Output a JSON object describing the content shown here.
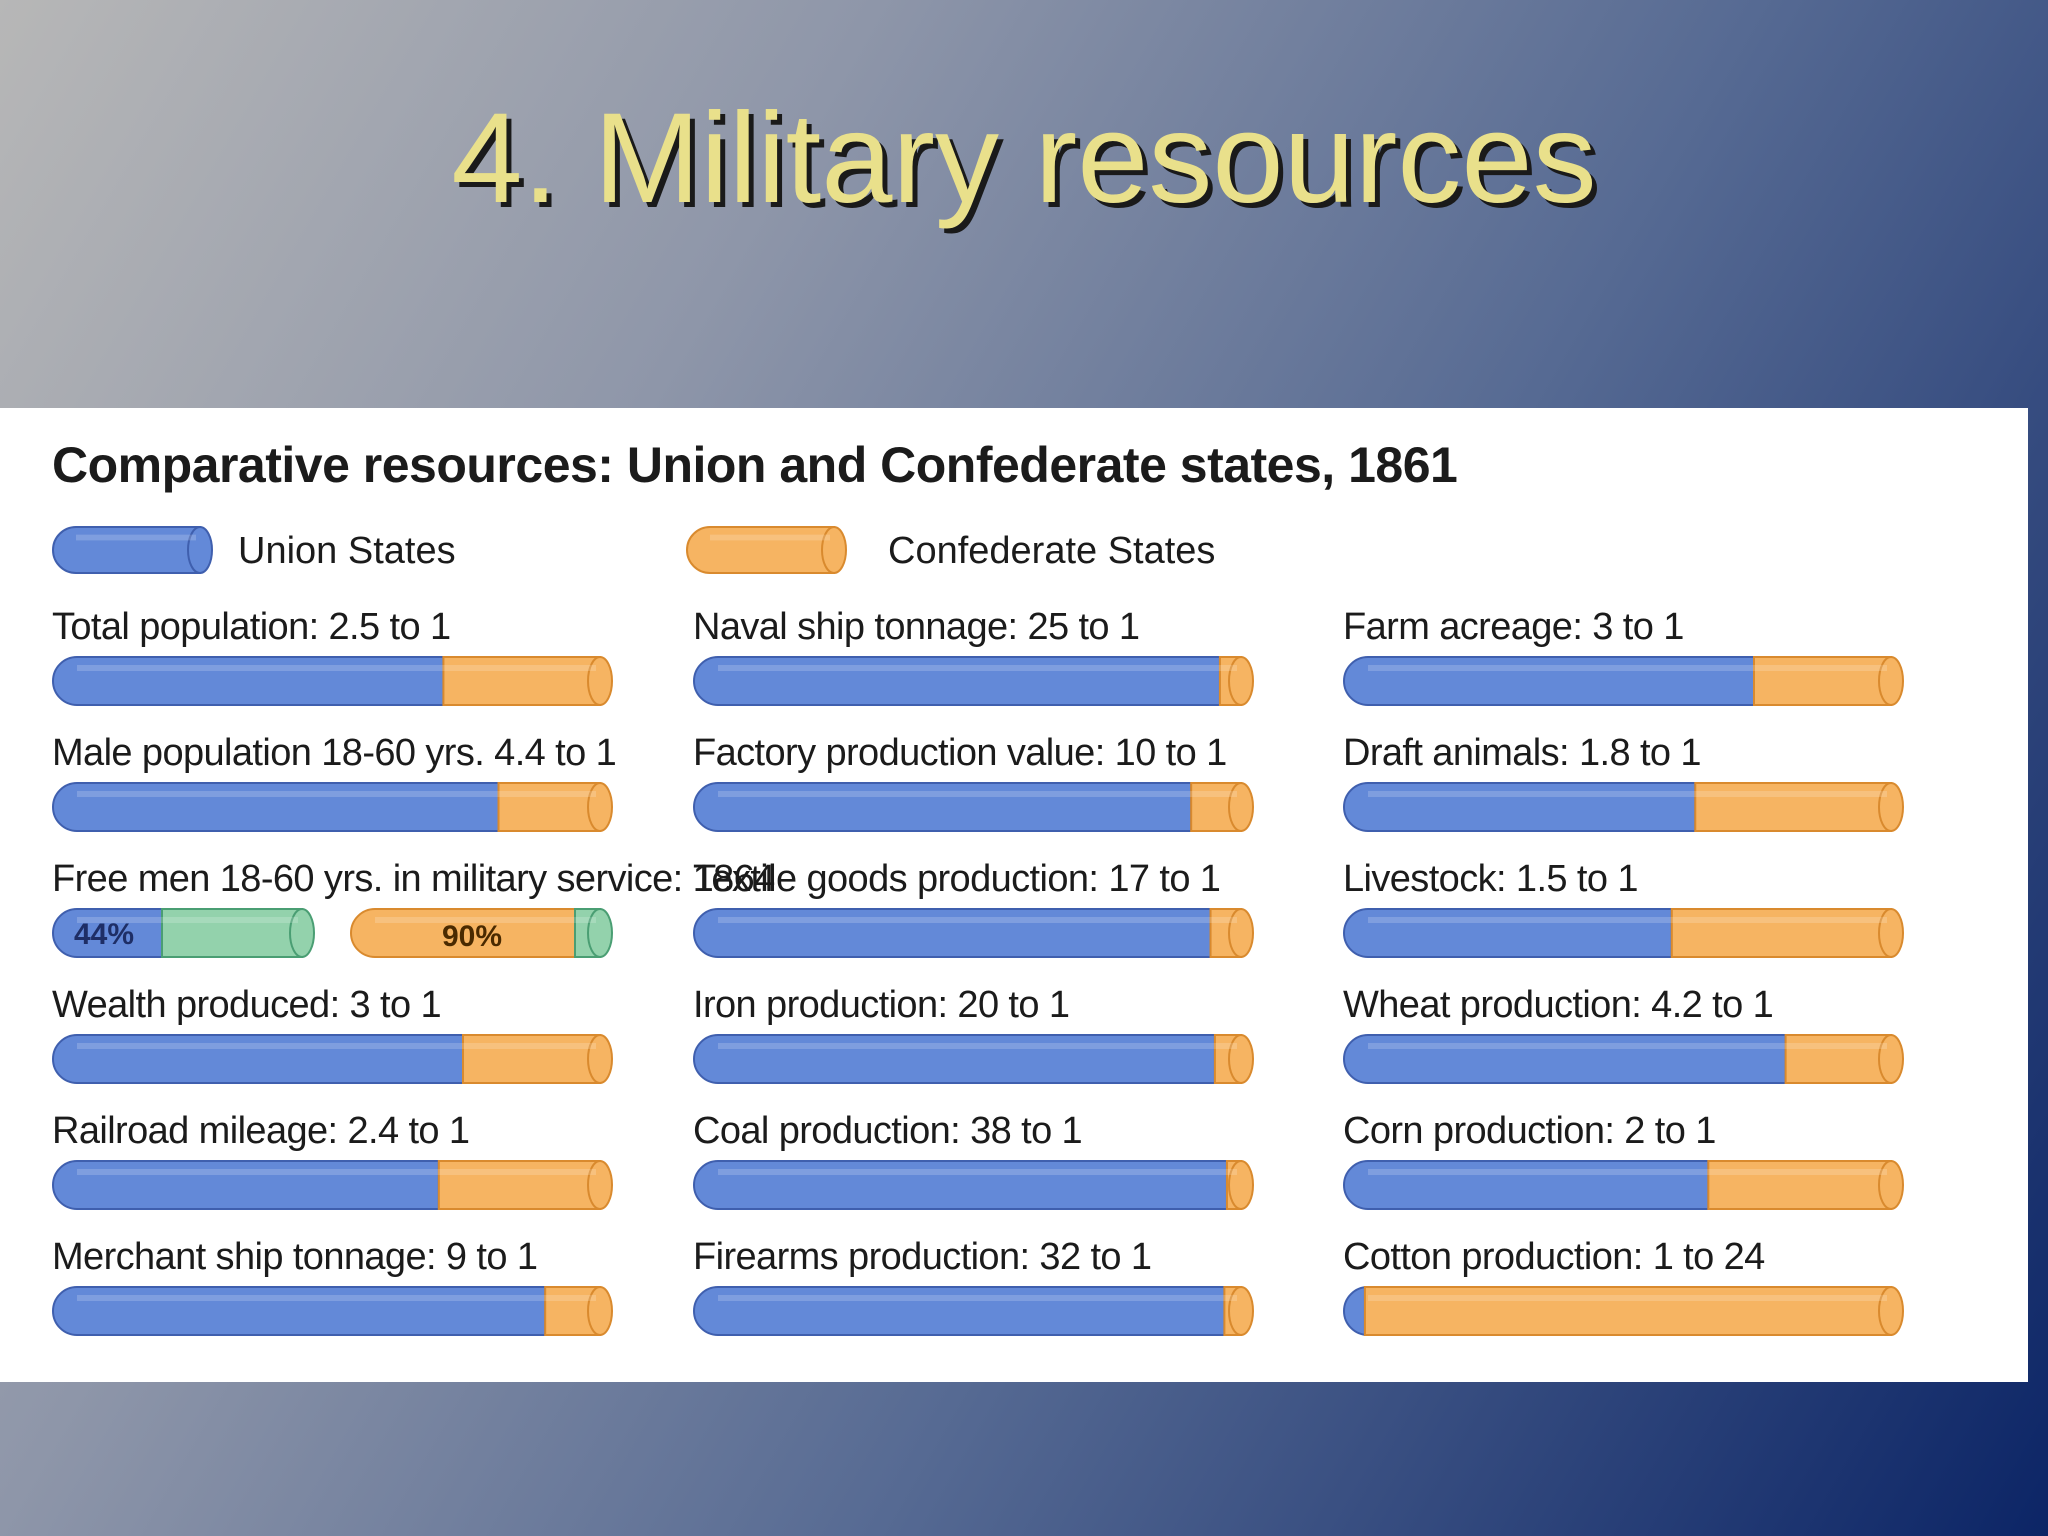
{
  "slide_title": "4. Military resources",
  "colors": {
    "union": "#6389d8",
    "union_dark": "#3f5fae",
    "confed": "#f6b462",
    "confed_dark": "#d98a2e",
    "service": "#93d2ac",
    "service_dark": "#4a9e73"
  },
  "chart_data": {
    "type": "bar",
    "title": "Comparative resources: Union and Confederate states, 1861",
    "legend": [
      {
        "name": "Union States",
        "color": "#6389d8"
      },
      {
        "name": "Confederate States",
        "color": "#f6b462"
      }
    ],
    "series": [
      {
        "name": "Union States"
      },
      {
        "name": "Confederate States"
      }
    ],
    "columns": [
      [
        {
          "label": "Total population: 2.5 to 1",
          "union": 2.5,
          "confed": 1
        },
        {
          "label": "Male population 18-60 yrs. 4.4 to 1",
          "union": 4.4,
          "confed": 1
        },
        {
          "label": "Free men 18-60 yrs. in military service: 1864",
          "kind": "percent",
          "union_pct": 44,
          "confed_pct": 90,
          "union_text": "44%",
          "confed_text": "90%"
        },
        {
          "label": "Wealth produced: 3 to 1",
          "union": 3,
          "confed": 1
        },
        {
          "label": "Railroad mileage: 2.4 to 1",
          "union": 2.4,
          "confed": 1
        },
        {
          "label": "Merchant ship tonnage: 9 to 1",
          "union": 9,
          "confed": 1
        }
      ],
      [
        {
          "label": "Naval ship tonnage: 25 to 1",
          "union": 25,
          "confed": 1
        },
        {
          "label": "Factory production value: 10 to 1",
          "union": 10,
          "confed": 1
        },
        {
          "label": "Textile goods production: 17 to 1",
          "union": 17,
          "confed": 1
        },
        {
          "label": "Iron production: 20 to 1",
          "union": 20,
          "confed": 1
        },
        {
          "label": "Coal production: 38 to 1",
          "union": 38,
          "confed": 1
        },
        {
          "label": "Firearms production: 32 to 1",
          "union": 32,
          "confed": 1
        }
      ],
      [
        {
          "label": "Farm acreage: 3 to 1",
          "union": 3,
          "confed": 1
        },
        {
          "label": "Draft animals: 1.8 to 1",
          "union": 1.8,
          "confed": 1
        },
        {
          "label": "Livestock: 1.5 to 1",
          "union": 1.5,
          "confed": 1
        },
        {
          "label": "Wheat production: 4.2 to 1",
          "union": 4.2,
          "confed": 1
        },
        {
          "label": "Corn production: 2 to 1",
          "union": 2,
          "confed": 1
        },
        {
          "label": "Cotton production: 1 to 24",
          "union": 1,
          "confed": 24
        }
      ]
    ]
  }
}
